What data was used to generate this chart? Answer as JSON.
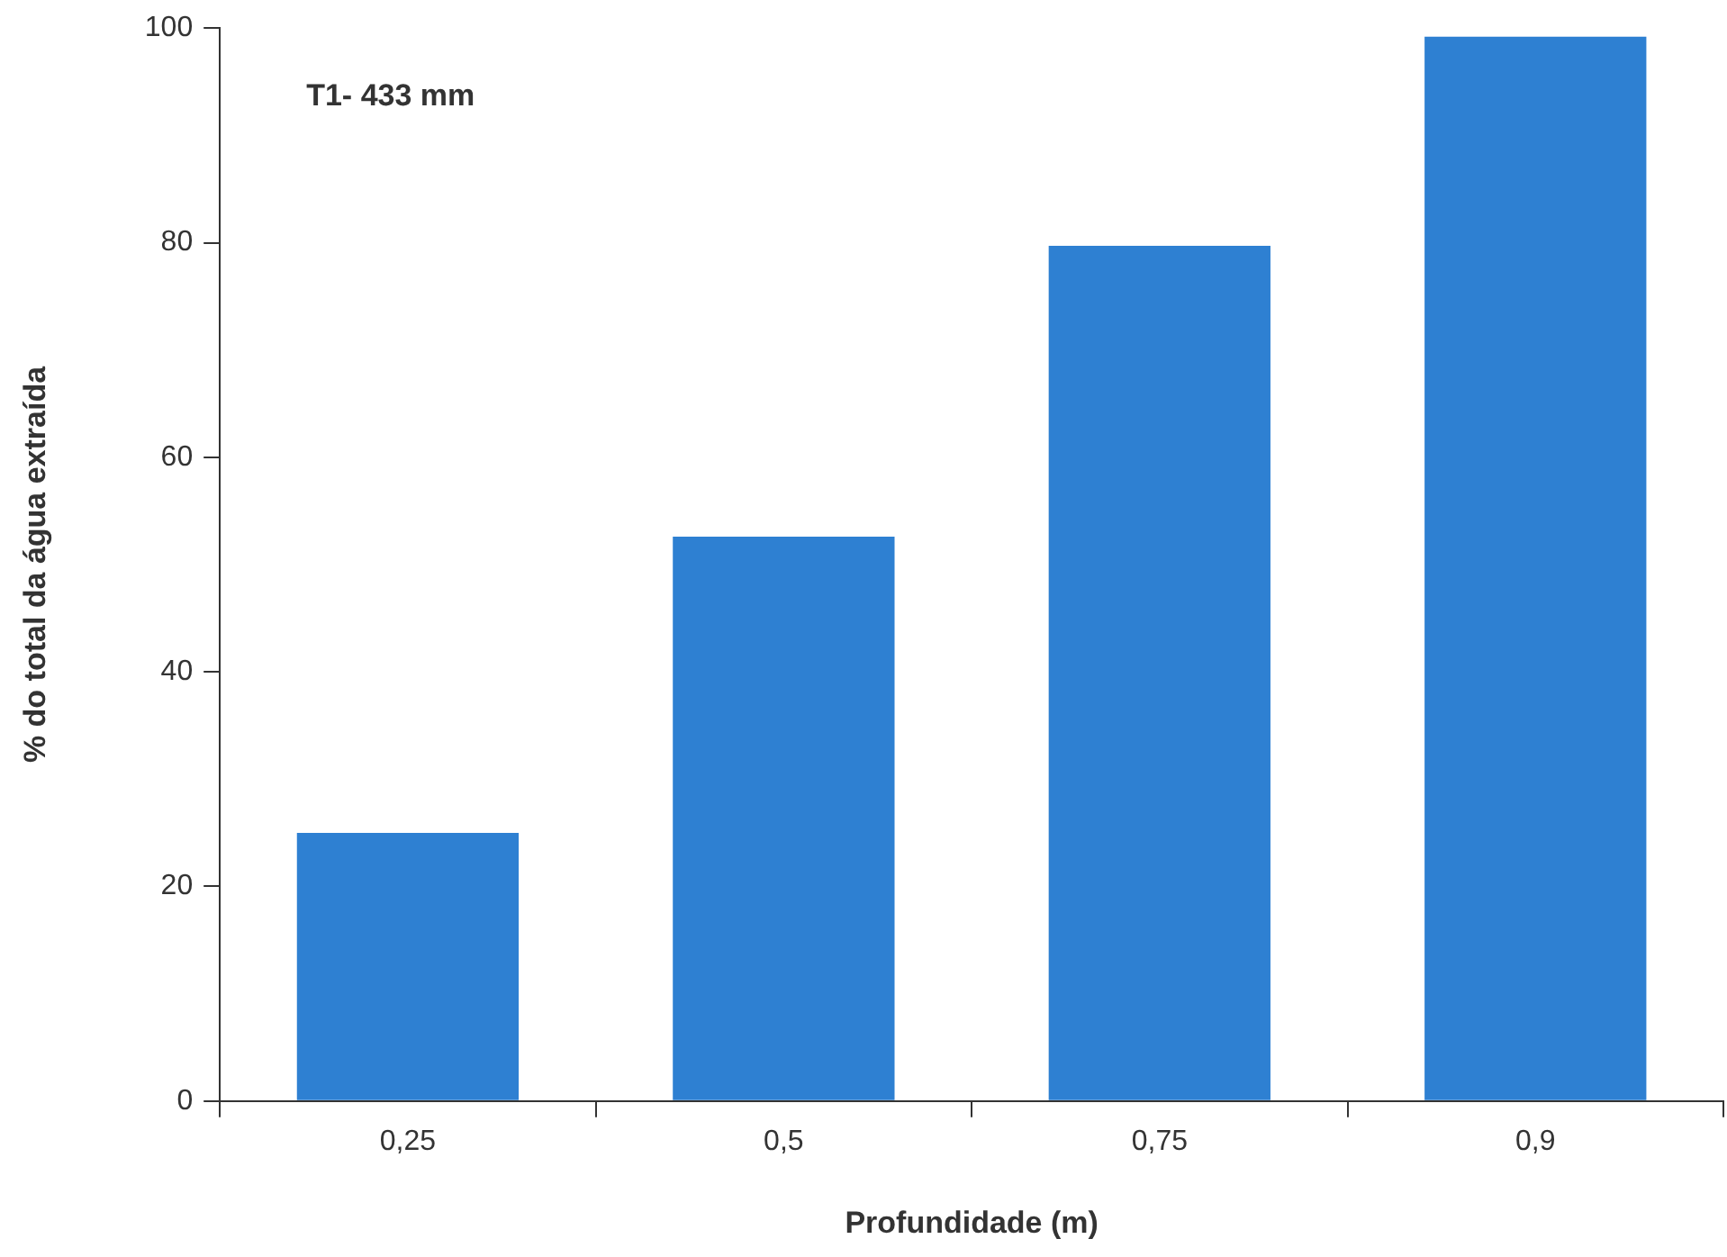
{
  "chart_data": {
    "type": "bar",
    "xlabel": "Profundidade (m)",
    "ylabel": "% do total da água extraída",
    "annotations": [
      "T1- 433 mm"
    ],
    "categories": [
      "0,25",
      "0,5",
      "0,75",
      "0,9"
    ],
    "values": [
      25,
      52.6,
      79.7,
      99.2
    ],
    "color": "#2e80d2",
    "ylim": [
      0,
      100
    ],
    "yticks": [
      0,
      20,
      40,
      60,
      80,
      100
    ],
    "grid": false,
    "legend": false
  }
}
